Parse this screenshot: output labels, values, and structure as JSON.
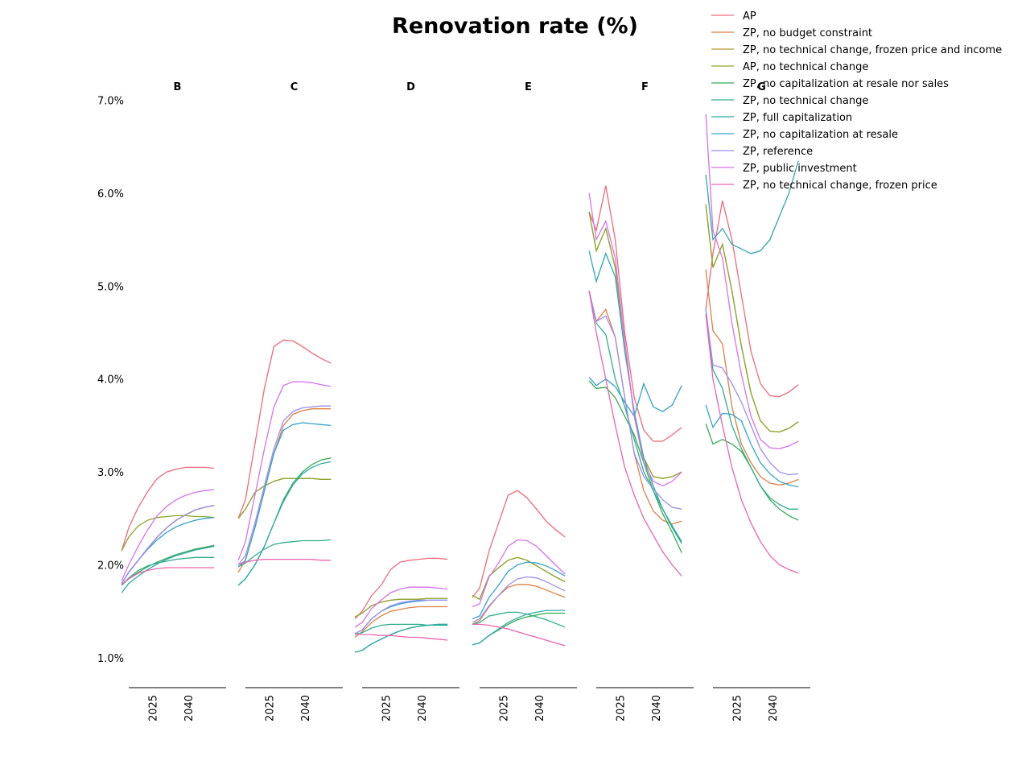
{
  "chart_data": {
    "type": "line",
    "title": "Renovation rate (%)",
    "xlabel": "",
    "ylabel": "",
    "ylim": [
      0.8,
      7.1
    ],
    "xlim": [
      2015,
      2056
    ],
    "yticks": [
      "1.0%",
      "2.0%",
      "3.0%",
      "4.0%",
      "5.0%",
      "6.0%",
      "7.0%"
    ],
    "ytick_values": [
      1.0,
      2.0,
      3.0,
      4.0,
      5.0,
      6.0,
      7.0
    ],
    "xticks": [
      "2025",
      "2040"
    ],
    "xtick_values": [
      2025,
      2040
    ],
    "legend_placement": "top-right",
    "grid": false,
    "series_info": [
      {
        "name": "AP",
        "color": "#f0697a"
      },
      {
        "name": "ZP, no budget constraint",
        "color": "#dd8040"
      },
      {
        "name": "ZP, no technical change, frozen price and income",
        "color": "#b69a2a"
      },
      {
        "name": "AP, no technical change",
        "color": "#8ea630"
      },
      {
        "name": "ZP, no capitalization at resale nor sales",
        "color": "#33ac52"
      },
      {
        "name": "ZP, no technical change",
        "color": "#2fae8c"
      },
      {
        "name": "ZP, full capitalization",
        "color": "#2ea9a8"
      },
      {
        "name": "ZP, no capitalization at resale",
        "color": "#33a3cb"
      },
      {
        "name": "ZP, reference",
        "color": "#9b8ef0"
      },
      {
        "name": "ZP, public investment",
        "color": "#d672ee"
      },
      {
        "name": "ZP, no technical change, frozen price",
        "color": "#ea63b0"
      }
    ],
    "x": [
      2012,
      2015,
      2019,
      2023,
      2027,
      2031,
      2035,
      2039,
      2043,
      2047,
      2051
    ],
    "panels": [
      {
        "title": "B",
        "series": [
          [
            2.15,
            2.4,
            2.62,
            2.79,
            2.93,
            3.0,
            3.03,
            3.05,
            3.05,
            3.05,
            3.04
          ],
          [
            1.8,
            1.92,
            2.05,
            2.18,
            2.3,
            2.4,
            2.48,
            2.54,
            2.59,
            2.62,
            2.64
          ],
          [
            1.8,
            1.92,
            2.05,
            2.18,
            2.3,
            2.4,
            2.48,
            2.54,
            2.59,
            2.62,
            2.64
          ],
          [
            2.15,
            2.3,
            2.42,
            2.48,
            2.51,
            2.52,
            2.53,
            2.53,
            2.52,
            2.52,
            2.51
          ],
          [
            1.78,
            1.85,
            1.92,
            1.98,
            2.03,
            2.07,
            2.11,
            2.14,
            2.17,
            2.19,
            2.21
          ],
          [
            1.78,
            1.86,
            1.94,
            1.99,
            2.02,
            2.04,
            2.06,
            2.07,
            2.08,
            2.08,
            2.08
          ],
          [
            1.7,
            1.8,
            1.88,
            1.95,
            2.01,
            2.06,
            2.1,
            2.13,
            2.16,
            2.18,
            2.2
          ],
          [
            1.8,
            1.92,
            2.05,
            2.17,
            2.27,
            2.35,
            2.41,
            2.45,
            2.48,
            2.5,
            2.51
          ],
          [
            1.8,
            1.92,
            2.05,
            2.18,
            2.3,
            2.4,
            2.48,
            2.54,
            2.59,
            2.62,
            2.64
          ],
          [
            1.83,
            2.0,
            2.2,
            2.38,
            2.53,
            2.63,
            2.7,
            2.75,
            2.78,
            2.8,
            2.81
          ],
          [
            1.79,
            1.85,
            1.91,
            1.94,
            1.96,
            1.97,
            1.97,
            1.97,
            1.97,
            1.97,
            1.97
          ]
        ]
      },
      {
        "title": "C",
        "series": [
          [
            2.5,
            2.7,
            3.3,
            3.9,
            4.35,
            4.42,
            4.41,
            4.35,
            4.28,
            4.22,
            4.17
          ],
          [
            1.92,
            2.05,
            2.4,
            2.8,
            3.2,
            3.5,
            3.62,
            3.66,
            3.68,
            3.68,
            3.68
          ],
          [
            2.5,
            2.6,
            2.78,
            2.85,
            2.9,
            2.93,
            2.93,
            2.93,
            2.93,
            2.92,
            2.92
          ],
          [
            2.5,
            2.6,
            2.78,
            2.85,
            2.9,
            2.93,
            2.93,
            2.93,
            2.93,
            2.92,
            2.92
          ],
          [
            1.78,
            1.85,
            2.0,
            2.2,
            2.45,
            2.7,
            2.88,
            3.0,
            3.08,
            3.13,
            3.15
          ],
          [
            1.98,
            2.02,
            2.1,
            2.17,
            2.22,
            2.24,
            2.25,
            2.26,
            2.26,
            2.26,
            2.27
          ],
          [
            1.78,
            1.85,
            2.0,
            2.2,
            2.45,
            2.68,
            2.86,
            2.98,
            3.05,
            3.09,
            3.11
          ],
          [
            1.98,
            2.05,
            2.4,
            2.8,
            3.2,
            3.45,
            3.51,
            3.53,
            3.52,
            3.51,
            3.5
          ],
          [
            2.0,
            2.1,
            2.45,
            2.85,
            3.25,
            3.55,
            3.65,
            3.69,
            3.7,
            3.71,
            3.71
          ],
          [
            2.05,
            2.25,
            2.75,
            3.25,
            3.7,
            3.93,
            3.97,
            3.97,
            3.96,
            3.94,
            3.92
          ],
          [
            2.01,
            2.03,
            2.05,
            2.06,
            2.06,
            2.06,
            2.06,
            2.06,
            2.06,
            2.05,
            2.05
          ]
        ]
      },
      {
        "title": "D",
        "series": [
          [
            1.42,
            1.5,
            1.67,
            1.78,
            1.95,
            2.03,
            2.05,
            2.06,
            2.07,
            2.07,
            2.06
          ],
          [
            1.22,
            1.28,
            1.38,
            1.45,
            1.5,
            1.52,
            1.54,
            1.55,
            1.55,
            1.55,
            1.55
          ],
          [
            1.44,
            1.48,
            1.56,
            1.6,
            1.62,
            1.63,
            1.63,
            1.63,
            1.64,
            1.64,
            1.64
          ],
          [
            1.44,
            1.48,
            1.56,
            1.6,
            1.62,
            1.63,
            1.63,
            1.63,
            1.64,
            1.64,
            1.64
          ],
          [
            1.06,
            1.08,
            1.15,
            1.2,
            1.25,
            1.29,
            1.32,
            1.34,
            1.35,
            1.36,
            1.36
          ],
          [
            1.25,
            1.27,
            1.32,
            1.35,
            1.36,
            1.36,
            1.36,
            1.36,
            1.35,
            1.35,
            1.35
          ],
          [
            1.06,
            1.08,
            1.15,
            1.2,
            1.25,
            1.29,
            1.32,
            1.34,
            1.35,
            1.36,
            1.36
          ],
          [
            1.26,
            1.3,
            1.42,
            1.5,
            1.55,
            1.58,
            1.6,
            1.61,
            1.62,
            1.62,
            1.62
          ],
          [
            1.26,
            1.3,
            1.42,
            1.5,
            1.56,
            1.59,
            1.61,
            1.62,
            1.62,
            1.62,
            1.62
          ],
          [
            1.33,
            1.38,
            1.53,
            1.62,
            1.7,
            1.74,
            1.76,
            1.76,
            1.76,
            1.75,
            1.74
          ],
          [
            1.26,
            1.25,
            1.25,
            1.24,
            1.24,
            1.23,
            1.22,
            1.22,
            1.21,
            1.2,
            1.19
          ]
        ]
      },
      {
        "title": "E",
        "series": [
          [
            1.65,
            1.75,
            2.15,
            2.45,
            2.75,
            2.8,
            2.72,
            2.6,
            2.47,
            2.38,
            2.3
          ],
          [
            1.36,
            1.4,
            1.55,
            1.67,
            1.76,
            1.79,
            1.79,
            1.77,
            1.73,
            1.69,
            1.65
          ],
          [
            1.67,
            1.63,
            1.88,
            1.97,
            2.05,
            2.08,
            2.05,
            1.99,
            1.93,
            1.87,
            1.82
          ],
          [
            1.67,
            1.63,
            1.88,
            1.97,
            2.05,
            2.08,
            2.05,
            1.99,
            1.93,
            1.87,
            1.82
          ],
          [
            1.14,
            1.16,
            1.24,
            1.3,
            1.36,
            1.41,
            1.44,
            1.46,
            1.48,
            1.48,
            1.48
          ],
          [
            1.36,
            1.38,
            1.45,
            1.47,
            1.49,
            1.49,
            1.47,
            1.44,
            1.41,
            1.37,
            1.33
          ],
          [
            1.14,
            1.16,
            1.24,
            1.31,
            1.38,
            1.43,
            1.47,
            1.49,
            1.51,
            1.51,
            1.51
          ],
          [
            1.42,
            1.45,
            1.65,
            1.78,
            1.93,
            2.0,
            2.03,
            2.02,
            1.99,
            1.94,
            1.88
          ],
          [
            1.38,
            1.42,
            1.56,
            1.67,
            1.78,
            1.85,
            1.87,
            1.86,
            1.82,
            1.77,
            1.72
          ],
          [
            1.55,
            1.58,
            1.87,
            2.02,
            2.2,
            2.27,
            2.26,
            2.2,
            2.1,
            2.0,
            1.9
          ],
          [
            1.36,
            1.36,
            1.35,
            1.33,
            1.31,
            1.28,
            1.25,
            1.22,
            1.19,
            1.16,
            1.13
          ]
        ]
      },
      {
        "title": "F",
        "series": [
          [
            5.8,
            5.6,
            6.08,
            5.5,
            4.5,
            3.8,
            3.45,
            3.33,
            3.33,
            3.4,
            3.48
          ],
          [
            4.95,
            4.62,
            4.75,
            4.45,
            3.8,
            3.2,
            2.8,
            2.58,
            2.48,
            2.44,
            2.47
          ],
          [
            5.8,
            5.38,
            5.62,
            5.2,
            4.4,
            3.6,
            3.15,
            2.95,
            2.93,
            2.95,
            3.0
          ],
          [
            5.8,
            5.38,
            5.62,
            5.2,
            4.4,
            3.6,
            3.15,
            2.95,
            2.93,
            2.95,
            3.0
          ],
          [
            3.98,
            3.9,
            3.91,
            3.8,
            3.6,
            3.4,
            3.1,
            2.8,
            2.55,
            2.35,
            2.13
          ],
          [
            4.95,
            4.6,
            4.48,
            4.0,
            3.7,
            3.35,
            3.0,
            2.8,
            2.6,
            2.42,
            2.25
          ],
          [
            5.38,
            5.05,
            5.35,
            5.1,
            4.3,
            3.65,
            3.15,
            2.85,
            2.6,
            2.4,
            2.23
          ],
          [
            4.02,
            3.93,
            4.0,
            3.92,
            3.75,
            3.6,
            3.95,
            3.7,
            3.65,
            3.72,
            3.93
          ],
          [
            4.95,
            4.62,
            4.68,
            4.45,
            3.8,
            3.2,
            2.95,
            2.82,
            2.7,
            2.62,
            2.6
          ],
          [
            6.0,
            5.5,
            5.7,
            5.3,
            4.4,
            3.6,
            3.1,
            2.9,
            2.85,
            2.9,
            3.0
          ],
          [
            4.95,
            4.5,
            4.0,
            3.5,
            3.05,
            2.75,
            2.5,
            2.32,
            2.14,
            2.0,
            1.88
          ]
        ]
      },
      {
        "title": "G",
        "series": [
          [
            4.75,
            5.35,
            5.92,
            5.5,
            4.9,
            4.3,
            3.95,
            3.82,
            3.81,
            3.86,
            3.94
          ],
          [
            5.18,
            4.52,
            4.38,
            3.7,
            3.3,
            3.1,
            2.95,
            2.88,
            2.86,
            2.88,
            2.92
          ],
          [
            5.88,
            5.2,
            5.45,
            4.95,
            4.35,
            3.85,
            3.55,
            3.44,
            3.43,
            3.47,
            3.54
          ],
          [
            5.88,
            5.2,
            5.45,
            4.95,
            4.35,
            3.85,
            3.55,
            3.44,
            3.43,
            3.47,
            3.54
          ],
          [
            3.52,
            3.3,
            3.35,
            3.3,
            3.22,
            3.05,
            2.85,
            2.7,
            2.6,
            2.53,
            2.48
          ],
          [
            4.75,
            4.1,
            3.9,
            3.5,
            3.25,
            3.05,
            2.85,
            2.72,
            2.65,
            2.6,
            2.6
          ],
          [
            6.2,
            5.5,
            5.62,
            5.45,
            5.4,
            5.35,
            5.38,
            5.5,
            5.75,
            6.0,
            6.35
          ],
          [
            3.72,
            3.48,
            3.63,
            3.62,
            3.55,
            3.3,
            3.1,
            2.98,
            2.9,
            2.86,
            2.84
          ],
          [
            4.75,
            4.15,
            4.12,
            3.95,
            3.75,
            3.5,
            3.25,
            3.1,
            3.0,
            2.97,
            2.98
          ],
          [
            6.85,
            5.6,
            5.3,
            4.6,
            4.05,
            3.6,
            3.35,
            3.26,
            3.25,
            3.28,
            3.33
          ],
          [
            4.7,
            4.0,
            3.5,
            3.05,
            2.7,
            2.45,
            2.25,
            2.1,
            2.0,
            1.95,
            1.91
          ]
        ]
      }
    ]
  }
}
